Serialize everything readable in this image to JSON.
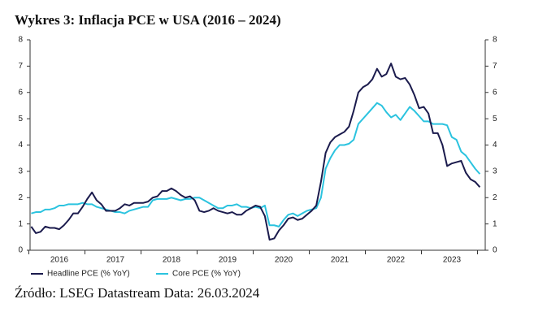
{
  "chart_data": {
    "type": "line",
    "title": "Wykres 3: Inflacja PCE w USA (2016 – 2024)",
    "source": "Źródło: LSEG Datastream Data: 26.03.2024",
    "categories": [
      null,
      null,
      null,
      null,
      null,
      null,
      "2016",
      null,
      null,
      null,
      null,
      null,
      null,
      null,
      null,
      null,
      null,
      null,
      "2017",
      null,
      null,
      null,
      null,
      null,
      null,
      null,
      null,
      null,
      null,
      null,
      "2018",
      null,
      null,
      null,
      null,
      null,
      null,
      null,
      null,
      null,
      null,
      null,
      "2019",
      null,
      null,
      null,
      null,
      null,
      null,
      null,
      null,
      null,
      null,
      null,
      "2020",
      null,
      null,
      null,
      null,
      null,
      null,
      null,
      null,
      null,
      null,
      null,
      "2021",
      null,
      null,
      null,
      null,
      null,
      null,
      null,
      null,
      null,
      null,
      null,
      "2022",
      null,
      null,
      null,
      null,
      null,
      null,
      null,
      null,
      null,
      null,
      null,
      "2023",
      null,
      null,
      null,
      null,
      null,
      null
    ],
    "series": [
      {
        "name": "Headline PCE (% YoY)",
        "color": "#1b1b4d",
        "values": [
          0.9,
          0.65,
          0.7,
          0.9,
          0.85,
          0.85,
          0.8,
          0.95,
          1.15,
          1.4,
          1.4,
          1.65,
          1.95,
          2.2,
          1.9,
          1.75,
          1.5,
          1.5,
          1.5,
          1.6,
          1.75,
          1.7,
          1.8,
          1.8,
          1.8,
          1.85,
          2.0,
          2.05,
          2.25,
          2.25,
          2.35,
          2.25,
          2.1,
          2.0,
          2.05,
          1.9,
          1.5,
          1.45,
          1.5,
          1.6,
          1.5,
          1.45,
          1.4,
          1.45,
          1.35,
          1.35,
          1.5,
          1.6,
          1.7,
          1.65,
          1.3,
          0.4,
          0.45,
          0.75,
          0.95,
          1.2,
          1.25,
          1.15,
          1.2,
          1.35,
          1.5,
          1.7,
          2.6,
          3.7,
          4.1,
          4.3,
          4.4,
          4.5,
          4.7,
          5.3,
          6.0,
          6.2,
          6.3,
          6.5,
          6.9,
          6.6,
          6.7,
          7.1,
          6.6,
          6.5,
          6.55,
          6.3,
          5.9,
          5.4,
          5.45,
          5.2,
          4.45,
          4.45,
          4.0,
          3.2,
          3.3,
          3.35,
          3.4,
          2.95,
          2.7,
          2.6,
          2.4
        ]
      },
      {
        "name": "Core PCE (% YoY)",
        "color": "#2bc3df",
        "values": [
          1.4,
          1.45,
          1.45,
          1.55,
          1.55,
          1.6,
          1.7,
          1.7,
          1.75,
          1.75,
          1.75,
          1.8,
          1.75,
          1.75,
          1.65,
          1.6,
          1.55,
          1.5,
          1.45,
          1.45,
          1.4,
          1.5,
          1.55,
          1.6,
          1.65,
          1.65,
          1.9,
          1.95,
          1.95,
          1.95,
          2.0,
          1.95,
          1.9,
          1.95,
          1.95,
          2.0,
          2.0,
          1.9,
          1.8,
          1.7,
          1.6,
          1.6,
          1.7,
          1.7,
          1.75,
          1.65,
          1.65,
          1.6,
          1.65,
          1.6,
          1.7,
          0.95,
          0.95,
          0.9,
          1.15,
          1.35,
          1.4,
          1.3,
          1.4,
          1.5,
          1.55,
          1.6,
          2.0,
          3.1,
          3.5,
          3.8,
          4.0,
          4.0,
          4.05,
          4.2,
          4.8,
          5.0,
          5.2,
          5.4,
          5.6,
          5.5,
          5.25,
          5.05,
          5.15,
          4.95,
          5.2,
          5.45,
          5.3,
          5.1,
          4.9,
          4.9,
          4.8,
          4.8,
          4.8,
          4.75,
          4.3,
          4.2,
          3.75,
          3.6,
          3.35,
          3.1,
          2.9
        ]
      }
    ],
    "ylim": [
      0,
      8
    ],
    "yticks": [
      0,
      1,
      2,
      3,
      4,
      5,
      6,
      7,
      8
    ],
    "y2lim": [
      0,
      8
    ],
    "y2ticks": [
      0,
      1,
      2,
      3,
      4,
      5,
      6,
      7,
      8
    ],
    "legend": "bottom-left"
  }
}
